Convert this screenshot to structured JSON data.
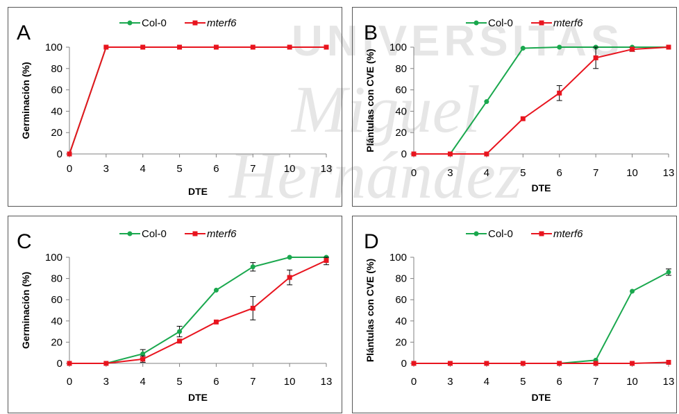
{
  "colors": {
    "col0": "#1aa84e",
    "mterf6": "#e8141e",
    "axis": "#808080",
    "error": "#000000",
    "watermark": "#d8d8d8"
  },
  "watermark": {
    "lines": [
      "UNIVERSITAS",
      "Miguel",
      "Hernández"
    ]
  },
  "chart_data": [
    {
      "id": "A",
      "type": "line",
      "panel_letter": "A",
      "xlabel": "DTE",
      "ylabel": "Germinación (%)",
      "categories": [
        "0",
        "3",
        "4",
        "5",
        "6",
        "7",
        "10",
        "13"
      ],
      "y_ticks": [
        "0",
        "20",
        "40",
        "60",
        "80",
        "100"
      ],
      "ylim": [
        0,
        100
      ],
      "legend_position": "top",
      "series": [
        {
          "name": "Col-0",
          "color_key": "col0",
          "marker": "circle",
          "values": [
            0,
            100,
            100,
            100,
            100,
            100,
            100,
            100
          ],
          "errors": [
            0,
            0,
            0,
            0,
            0,
            0,
            0,
            0
          ]
        },
        {
          "name": "mterf6",
          "color_key": "mterf6",
          "marker": "square",
          "italic": true,
          "values": [
            0,
            100,
            100,
            100,
            100,
            100,
            100,
            100
          ],
          "errors": [
            0,
            0,
            0,
            0,
            0,
            0,
            0,
            0
          ]
        }
      ]
    },
    {
      "id": "B",
      "type": "line",
      "panel_letter": "B",
      "xlabel": "DTE",
      "ylabel": "Plántulas con CVE (%)",
      "categories": [
        "0",
        "3",
        "4",
        "5",
        "6",
        "7",
        "10",
        "13"
      ],
      "y_ticks": [
        "0",
        "20",
        "40",
        "60",
        "80",
        "100"
      ],
      "ylim": [
        0,
        100
      ],
      "legend_position": "top",
      "series": [
        {
          "name": "Col-0",
          "color_key": "col0",
          "marker": "circle",
          "values": [
            0,
            0,
            49,
            99,
            100,
            100,
            100,
            100
          ],
          "errors": [
            0,
            0,
            0,
            0,
            0,
            0,
            0,
            0
          ]
        },
        {
          "name": "mterf6",
          "color_key": "mterf6",
          "marker": "square",
          "italic": true,
          "values": [
            0,
            0,
            0,
            33,
            57,
            90,
            98,
            100
          ],
          "errors": [
            0,
            0,
            0,
            0,
            7,
            10,
            2,
            0
          ]
        }
      ]
    },
    {
      "id": "C",
      "type": "line",
      "panel_letter": "C",
      "xlabel": "DTE",
      "ylabel": "Germinación (%)",
      "categories": [
        "0",
        "3",
        "4",
        "5",
        "6",
        "7",
        "10",
        "13"
      ],
      "y_ticks": [
        "0",
        "20",
        "40",
        "60",
        "80",
        "100"
      ],
      "ylim": [
        0,
        100
      ],
      "legend_position": "top",
      "series": [
        {
          "name": "Col-0",
          "color_key": "col0",
          "marker": "circle",
          "values": [
            0,
            0,
            9,
            30,
            69,
            91,
            100,
            100
          ],
          "errors": [
            0,
            0,
            4,
            5,
            0,
            4,
            0,
            0
          ]
        },
        {
          "name": "mterf6",
          "color_key": "mterf6",
          "marker": "square",
          "italic": true,
          "values": [
            0,
            0,
            4,
            21,
            39,
            52,
            81,
            97
          ],
          "errors": [
            0,
            0,
            3,
            0,
            0,
            11,
            7,
            4
          ]
        }
      ]
    },
    {
      "id": "D",
      "type": "line",
      "panel_letter": "D",
      "xlabel": "DTE",
      "ylabel": "Plántulas con CVE (%)",
      "categories": [
        "0",
        "3",
        "4",
        "5",
        "6",
        "7",
        "10",
        "13"
      ],
      "y_ticks": [
        "0",
        "20",
        "40",
        "60",
        "80",
        "100"
      ],
      "ylim": [
        0,
        100
      ],
      "legend_position": "top",
      "series": [
        {
          "name": "Col-0",
          "color_key": "col0",
          "marker": "circle",
          "values": [
            0,
            0,
            0,
            0,
            0,
            3,
            68,
            86
          ],
          "errors": [
            0,
            0,
            0,
            0,
            0,
            0,
            0,
            3
          ]
        },
        {
          "name": "mterf6",
          "color_key": "mterf6",
          "marker": "square",
          "italic": true,
          "values": [
            0,
            0,
            0,
            0,
            0,
            0,
            0,
            1
          ],
          "errors": [
            0,
            0,
            0,
            0,
            0,
            0,
            0,
            0
          ]
        }
      ]
    }
  ]
}
